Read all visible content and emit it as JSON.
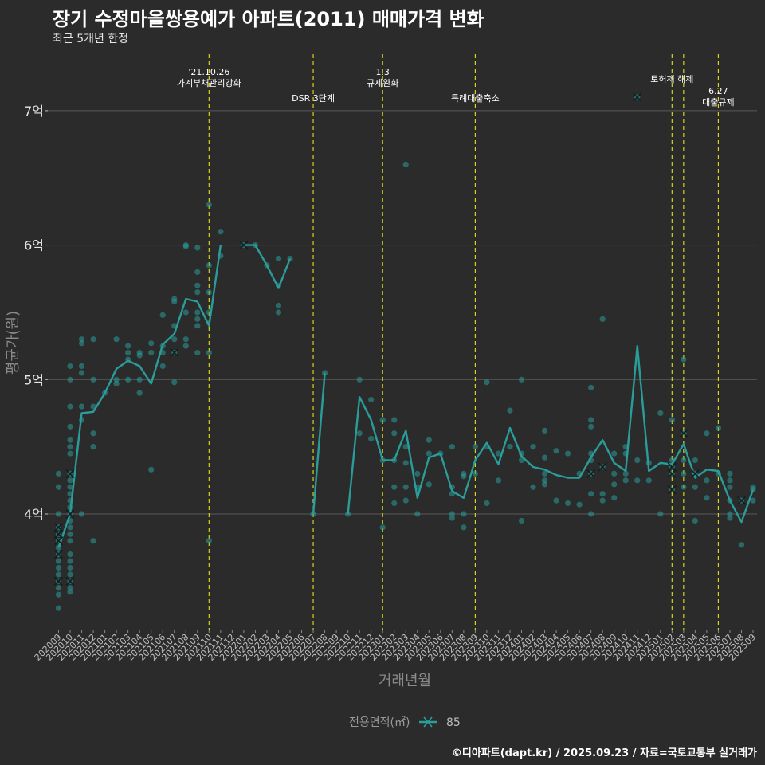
{
  "title": "장기 수정마을쌍용예가 아파트(2011) 매매가격 변화",
  "subtitle": "최근 5개년 한정",
  "caption": "©디아파트(dapt.kr) / 2025.09.23 / 자료=국토교통부 실거래가",
  "colors": {
    "background": "#2b2b2b",
    "grid": "#5a5a5a",
    "series": "#2a9d9a",
    "points": "#2a9d9a",
    "event_line": "#d4d41a",
    "text": "#ffffff"
  },
  "chart_data": {
    "type": "line",
    "xlabel": "거래년월",
    "ylabel": "평균가(원)",
    "y_unit_label": "억",
    "ylim": [
      3.1,
      7.4
    ],
    "yticks": [
      {
        "value": 4,
        "label": "4억"
      },
      {
        "value": 5,
        "label": "5억"
      },
      {
        "value": 6,
        "label": "6억"
      },
      {
        "value": 7,
        "label": "7억"
      }
    ],
    "grid": true,
    "legend": {
      "position": "bottom",
      "title": "전용면적(㎡)",
      "entries": [
        "85"
      ]
    },
    "categories": [
      "202009",
      "202010",
      "202011",
      "202012",
      "202101",
      "202102",
      "202103",
      "202104",
      "202105",
      "202106",
      "202107",
      "202108",
      "202109",
      "202110",
      "202111",
      "202112",
      "202201",
      "202202",
      "202203",
      "202204",
      "202205",
      "202206",
      "202207",
      "202208",
      "202209",
      "202210",
      "202211",
      "202212",
      "202301",
      "202302",
      "202303",
      "202304",
      "202305",
      "202306",
      "202307",
      "202308",
      "202309",
      "202310",
      "202311",
      "202312",
      "202401",
      "202402",
      "202403",
      "202404",
      "202405",
      "202406",
      "202407",
      "202408",
      "202409",
      "202410",
      "202411",
      "202412",
      "202501",
      "202502",
      "202503",
      "202504",
      "202505",
      "202506",
      "202507",
      "202508",
      "202509"
    ],
    "series": [
      {
        "name": "85",
        "values": [
          3.75,
          4.0,
          4.75,
          4.76,
          4.9,
          5.08,
          5.14,
          5.1,
          4.97,
          5.26,
          5.34,
          5.6,
          5.58,
          5.4,
          6.0,
          null,
          6.0,
          6.0,
          5.85,
          5.68,
          5.9,
          null,
          4.0,
          5.05,
          null,
          4.0,
          4.87,
          4.7,
          4.4,
          4.4,
          4.62,
          4.12,
          4.42,
          4.45,
          4.17,
          4.12,
          4.4,
          4.53,
          4.37,
          4.64,
          4.43,
          4.35,
          4.33,
          4.29,
          4.27,
          4.27,
          4.42,
          4.55,
          4.38,
          4.32,
          5.25,
          4.32,
          4.38,
          4.37,
          4.52,
          4.27,
          4.33,
          4.32,
          4.1,
          3.94,
          4.18
        ]
      }
    ],
    "points": [
      {
        "x": "202009",
        "y": 4.3
      },
      {
        "x": "202009",
        "y": 4.2
      },
      {
        "x": "202009",
        "y": 4.0
      },
      {
        "x": "202009",
        "y": 3.9
      },
      {
        "x": "202009",
        "y": 3.85
      },
      {
        "x": "202009",
        "y": 3.8
      },
      {
        "x": "202009",
        "y": 3.75
      },
      {
        "x": "202009",
        "y": 3.7
      },
      {
        "x": "202009",
        "y": 3.65
      },
      {
        "x": "202009",
        "y": 3.6
      },
      {
        "x": "202009",
        "y": 3.55
      },
      {
        "x": "202009",
        "y": 3.5
      },
      {
        "x": "202009",
        "y": 3.45
      },
      {
        "x": "202009",
        "y": 3.4
      },
      {
        "x": "202009",
        "y": 3.3
      },
      {
        "x": "202010",
        "y": 5.1
      },
      {
        "x": "202010",
        "y": 5.0
      },
      {
        "x": "202010",
        "y": 4.8
      },
      {
        "x": "202010",
        "y": 4.65
      },
      {
        "x": "202010",
        "y": 4.55
      },
      {
        "x": "202010",
        "y": 4.5
      },
      {
        "x": "202010",
        "y": 4.45
      },
      {
        "x": "202010",
        "y": 4.3
      },
      {
        "x": "202010",
        "y": 4.25
      },
      {
        "x": "202010",
        "y": 4.2
      },
      {
        "x": "202010",
        "y": 4.15
      },
      {
        "x": "202010",
        "y": 4.1
      },
      {
        "x": "202010",
        "y": 4.05
      },
      {
        "x": "202010",
        "y": 4.0
      },
      {
        "x": "202010",
        "y": 3.95
      },
      {
        "x": "202010",
        "y": 3.9
      },
      {
        "x": "202010",
        "y": 3.85
      },
      {
        "x": "202010",
        "y": 3.8
      },
      {
        "x": "202010",
        "y": 3.7
      },
      {
        "x": "202010",
        "y": 3.65
      },
      {
        "x": "202010",
        "y": 3.6
      },
      {
        "x": "202010",
        "y": 3.55
      },
      {
        "x": "202010",
        "y": 3.5
      },
      {
        "x": "202010",
        "y": 3.45
      },
      {
        "x": "202010",
        "y": 3.42
      },
      {
        "x": "202011",
        "y": 5.3
      },
      {
        "x": "202011",
        "y": 5.27
      },
      {
        "x": "202011",
        "y": 5.1
      },
      {
        "x": "202011",
        "y": 5.05
      },
      {
        "x": "202011",
        "y": 4.8
      },
      {
        "x": "202011",
        "y": 4.7
      },
      {
        "x": "202011",
        "y": 4.0
      },
      {
        "x": "202012",
        "y": 5.3
      },
      {
        "x": "202012",
        "y": 5.0
      },
      {
        "x": "202012",
        "y": 4.8
      },
      {
        "x": "202012",
        "y": 4.6
      },
      {
        "x": "202012",
        "y": 4.5
      },
      {
        "x": "202012",
        "y": 3.8
      },
      {
        "x": "202101",
        "y": 4.9
      },
      {
        "x": "202102",
        "y": 5.3
      },
      {
        "x": "202102",
        "y": 5.0
      },
      {
        "x": "202102",
        "y": 4.97
      },
      {
        "x": "202103",
        "y": 5.25
      },
      {
        "x": "202103",
        "y": 5.2
      },
      {
        "x": "202103",
        "y": 5.15
      },
      {
        "x": "202103",
        "y": 5.0
      },
      {
        "x": "202104",
        "y": 5.2
      },
      {
        "x": "202104",
        "y": 5.18
      },
      {
        "x": "202104",
        "y": 5.0
      },
      {
        "x": "202104",
        "y": 4.9
      },
      {
        "x": "202105",
        "y": 5.27
      },
      {
        "x": "202105",
        "y": 5.2
      },
      {
        "x": "202105",
        "y": 4.33
      },
      {
        "x": "202106",
        "y": 5.48
      },
      {
        "x": "202106",
        "y": 5.25
      },
      {
        "x": "202106",
        "y": 5.2
      },
      {
        "x": "202106",
        "y": 5.1
      },
      {
        "x": "202107",
        "y": 5.6
      },
      {
        "x": "202107",
        "y": 5.58
      },
      {
        "x": "202107",
        "y": 5.4
      },
      {
        "x": "202107",
        "y": 5.3
      },
      {
        "x": "202107",
        "y": 5.2
      },
      {
        "x": "202107",
        "y": 4.98
      },
      {
        "x": "202108",
        "y": 6.0
      },
      {
        "x": "202108",
        "y": 5.99
      },
      {
        "x": "202108",
        "y": 5.5
      },
      {
        "x": "202108",
        "y": 5.3
      },
      {
        "x": "202108",
        "y": 5.25
      },
      {
        "x": "202109",
        "y": 5.98
      },
      {
        "x": "202109",
        "y": 5.8
      },
      {
        "x": "202109",
        "y": 5.7
      },
      {
        "x": "202109",
        "y": 5.65
      },
      {
        "x": "202109",
        "y": 5.5
      },
      {
        "x": "202109",
        "y": 5.45
      },
      {
        "x": "202109",
        "y": 5.4
      },
      {
        "x": "202109",
        "y": 5.2
      },
      {
        "x": "202110",
        "y": 6.3
      },
      {
        "x": "202110",
        "y": 5.85
      },
      {
        "x": "202110",
        "y": 5.65
      },
      {
        "x": "202110",
        "y": 5.5
      },
      {
        "x": "202110",
        "y": 5.2
      },
      {
        "x": "202110",
        "y": 3.8
      },
      {
        "x": "202111",
        "y": 6.1
      },
      {
        "x": "202111",
        "y": 5.92
      },
      {
        "x": "202201",
        "y": 6.0
      },
      {
        "x": "202202",
        "y": 6.0
      },
      {
        "x": "202203",
        "y": 5.85
      },
      {
        "x": "202204",
        "y": 5.9
      },
      {
        "x": "202204",
        "y": 5.7
      },
      {
        "x": "202204",
        "y": 5.55
      },
      {
        "x": "202204",
        "y": 5.5
      },
      {
        "x": "202205",
        "y": 5.9
      },
      {
        "x": "202207",
        "y": 4.0
      },
      {
        "x": "202208",
        "y": 5.05
      },
      {
        "x": "202210",
        "y": 4.0
      },
      {
        "x": "202211",
        "y": 5.0
      },
      {
        "x": "202211",
        "y": 4.6
      },
      {
        "x": "202212",
        "y": 4.85
      },
      {
        "x": "202212",
        "y": 4.56
      },
      {
        "x": "202301",
        "y": 4.7
      },
      {
        "x": "202301",
        "y": 4.4
      },
      {
        "x": "202301",
        "y": 3.9
      },
      {
        "x": "202302",
        "y": 4.7
      },
      {
        "x": "202302",
        "y": 4.6
      },
      {
        "x": "202302",
        "y": 4.4
      },
      {
        "x": "202302",
        "y": 4.2
      },
      {
        "x": "202302",
        "y": 4.08
      },
      {
        "x": "202303",
        "y": 6.6
      },
      {
        "x": "202303",
        "y": 4.5
      },
      {
        "x": "202303",
        "y": 4.38
      },
      {
        "x": "202303",
        "y": 4.2
      },
      {
        "x": "202303",
        "y": 4.1
      },
      {
        "x": "202304",
        "y": 4.3
      },
      {
        "x": "202304",
        "y": 4.2
      },
      {
        "x": "202304",
        "y": 4.0
      },
      {
        "x": "202305",
        "y": 4.55
      },
      {
        "x": "202305",
        "y": 4.45
      },
      {
        "x": "202305",
        "y": 4.22
      },
      {
        "x": "202306",
        "y": 4.45
      },
      {
        "x": "202307",
        "y": 4.5
      },
      {
        "x": "202307",
        "y": 4.2
      },
      {
        "x": "202307",
        "y": 4.15
      },
      {
        "x": "202307",
        "y": 4.0
      },
      {
        "x": "202307",
        "y": 3.97
      },
      {
        "x": "202308",
        "y": 4.3
      },
      {
        "x": "202308",
        "y": 4.28
      },
      {
        "x": "202308",
        "y": 4.0
      },
      {
        "x": "202308",
        "y": 3.9
      },
      {
        "x": "202309",
        "y": 4.5
      },
      {
        "x": "202309",
        "y": 4.3
      },
      {
        "x": "202310",
        "y": 4.98
      },
      {
        "x": "202310",
        "y": 4.5
      },
      {
        "x": "202310",
        "y": 4.08
      },
      {
        "x": "202311",
        "y": 4.45
      },
      {
        "x": "202311",
        "y": 4.25
      },
      {
        "x": "202312",
        "y": 4.77
      },
      {
        "x": "202312",
        "y": 4.5
      },
      {
        "x": "202401",
        "y": 5.0
      },
      {
        "x": "202401",
        "y": 4.45
      },
      {
        "x": "202401",
        "y": 4.4
      },
      {
        "x": "202401",
        "y": 3.95
      },
      {
        "x": "202402",
        "y": 4.5
      },
      {
        "x": "202402",
        "y": 4.2
      },
      {
        "x": "202403",
        "y": 4.62
      },
      {
        "x": "202403",
        "y": 4.42
      },
      {
        "x": "202403",
        "y": 4.3
      },
      {
        "x": "202403",
        "y": 4.25
      },
      {
        "x": "202403",
        "y": 4.22
      },
      {
        "x": "202404",
        "y": 4.47
      },
      {
        "x": "202404",
        "y": 4.1
      },
      {
        "x": "202405",
        "y": 4.45
      },
      {
        "x": "202405",
        "y": 4.08
      },
      {
        "x": "202406",
        "y": 4.3
      },
      {
        "x": "202406",
        "y": 4.07
      },
      {
        "x": "202407",
        "y": 4.94
      },
      {
        "x": "202407",
        "y": 4.7
      },
      {
        "x": "202407",
        "y": 4.65
      },
      {
        "x": "202407",
        "y": 4.45
      },
      {
        "x": "202407",
        "y": 4.4
      },
      {
        "x": "202407",
        "y": 4.3
      },
      {
        "x": "202407",
        "y": 4.15
      },
      {
        "x": "202407",
        "y": 4.0
      },
      {
        "x": "202408",
        "y": 5.45
      },
      {
        "x": "202408",
        "y": 4.35
      },
      {
        "x": "202408",
        "y": 4.15
      },
      {
        "x": "202408",
        "y": 4.1
      },
      {
        "x": "202409",
        "y": 4.45
      },
      {
        "x": "202409",
        "y": 4.3
      },
      {
        "x": "202409",
        "y": 4.22
      },
      {
        "x": "202409",
        "y": 4.12
      },
      {
        "x": "202410",
        "y": 4.5
      },
      {
        "x": "202410",
        "y": 4.45
      },
      {
        "x": "202410",
        "y": 4.3
      },
      {
        "x": "202410",
        "y": 4.25
      },
      {
        "x": "202411",
        "y": 7.1
      },
      {
        "x": "202411",
        "y": 4.4
      },
      {
        "x": "202411",
        "y": 4.25
      },
      {
        "x": "202412",
        "y": 4.38
      },
      {
        "x": "202412",
        "y": 4.25
      },
      {
        "x": "202501",
        "y": 4.75
      },
      {
        "x": "202501",
        "y": 4.0
      },
      {
        "x": "202502",
        "y": 4.7
      },
      {
        "x": "202502",
        "y": 4.4
      },
      {
        "x": "202502",
        "y": 4.35
      },
      {
        "x": "202502",
        "y": 4.3
      },
      {
        "x": "202502",
        "y": 4.18
      },
      {
        "x": "202503",
        "y": 5.15
      },
      {
        "x": "202503",
        "y": 4.6
      },
      {
        "x": "202503",
        "y": 4.4
      },
      {
        "x": "202503",
        "y": 4.3
      },
      {
        "x": "202503",
        "y": 4.2
      },
      {
        "x": "202504",
        "y": 4.4
      },
      {
        "x": "202504",
        "y": 4.3
      },
      {
        "x": "202504",
        "y": 4.2
      },
      {
        "x": "202504",
        "y": 3.95
      },
      {
        "x": "202505",
        "y": 4.6
      },
      {
        "x": "202505",
        "y": 4.25
      },
      {
        "x": "202505",
        "y": 4.12
      },
      {
        "x": "202506",
        "y": 4.64
      },
      {
        "x": "202506",
        "y": 4.3
      },
      {
        "x": "202507",
        "y": 4.3
      },
      {
        "x": "202507",
        "y": 4.25
      },
      {
        "x": "202507",
        "y": 4.2
      },
      {
        "x": "202507",
        "y": 4.1
      },
      {
        "x": "202507",
        "y": 4.0
      },
      {
        "x": "202507",
        "y": 3.97
      },
      {
        "x": "202508",
        "y": 4.1
      },
      {
        "x": "202508",
        "y": 3.77
      },
      {
        "x": "202509",
        "y": 4.2
      },
      {
        "x": "202509",
        "y": 4.18
      },
      {
        "x": "202509",
        "y": 4.1
      }
    ],
    "x_marks": [
      {
        "x": "202009",
        "y": 3.9
      },
      {
        "x": "202009",
        "y": 3.85
      },
      {
        "x": "202009",
        "y": 3.8
      },
      {
        "x": "202009",
        "y": 3.7
      },
      {
        "x": "202009",
        "y": 3.5
      },
      {
        "x": "202010",
        "y": 4.3
      },
      {
        "x": "202010",
        "y": 4.0
      },
      {
        "x": "202010",
        "y": 3.5
      },
      {
        "x": "202107",
        "y": 5.2
      },
      {
        "x": "202201",
        "y": 6.0
      },
      {
        "x": "202407",
        "y": 4.3
      },
      {
        "x": "202408",
        "y": 4.35
      },
      {
        "x": "202411",
        "y": 7.1
      },
      {
        "x": "202502",
        "y": 4.35
      },
      {
        "x": "202502",
        "y": 4.3
      },
      {
        "x": "202502",
        "y": 4.18
      },
      {
        "x": "202503",
        "y": 4.6
      },
      {
        "x": "202504",
        "y": 4.3
      },
      {
        "x": "202508",
        "y": 4.1
      }
    ],
    "events": [
      {
        "x": "202110",
        "lines": [
          "'21.10.26",
          "가계부채관리강화"
        ],
        "row": "top"
      },
      {
        "x": "202207",
        "lines": [
          "DSR 3단계"
        ],
        "row": "low"
      },
      {
        "x": "202301",
        "lines": [
          "1.3",
          "규제완화"
        ],
        "row": "top"
      },
      {
        "x": "202309",
        "lines": [
          "특례대출축소"
        ],
        "row": "low"
      },
      {
        "x": "202502",
        "lines": [
          "토허제 해제"
        ],
        "row": "mid"
      },
      {
        "x": "202503",
        "lines": [],
        "row": "mid"
      },
      {
        "x": "202506",
        "lines": [
          "6.27",
          "대출규제"
        ],
        "row": "low2"
      }
    ]
  }
}
